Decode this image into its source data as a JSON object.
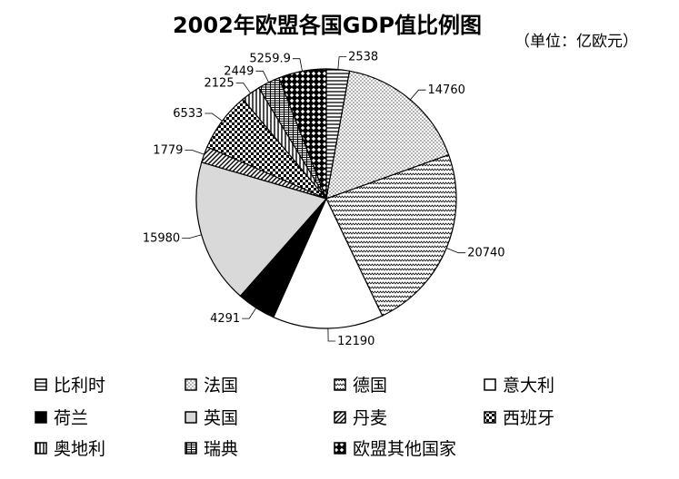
{
  "title": "2002年欧盟各国GDP值比例图",
  "unit": "（单位：亿欧元）",
  "chart_data": {
    "type": "pie",
    "title": "2002年欧盟各国GDP值比例图",
    "unit": "（单位：亿欧元）",
    "categories": [
      "比利时",
      "法国",
      "德国",
      "意大利",
      "荷兰",
      "英国",
      "丹麦",
      "西班牙",
      "奥地利",
      "瑞典",
      "欧盟其他国家"
    ],
    "values": [
      2538,
      14760,
      20740,
      12190,
      4291,
      15980,
      1779,
      6533,
      2125,
      2449,
      5259.9
    ],
    "data_labels": [
      "2538",
      "14760",
      "20740",
      "12190",
      "4291",
      "15980",
      "1779",
      "6533",
      "2125",
      "2449",
      "5259.9"
    ],
    "patterns": [
      "hlines",
      "dots",
      "zigzag",
      "blank",
      "solid",
      "lightgray",
      "diag",
      "checker",
      "vlines",
      "grid",
      "diamond"
    ],
    "legend_position": "bottom",
    "start": "top, clockwise"
  }
}
